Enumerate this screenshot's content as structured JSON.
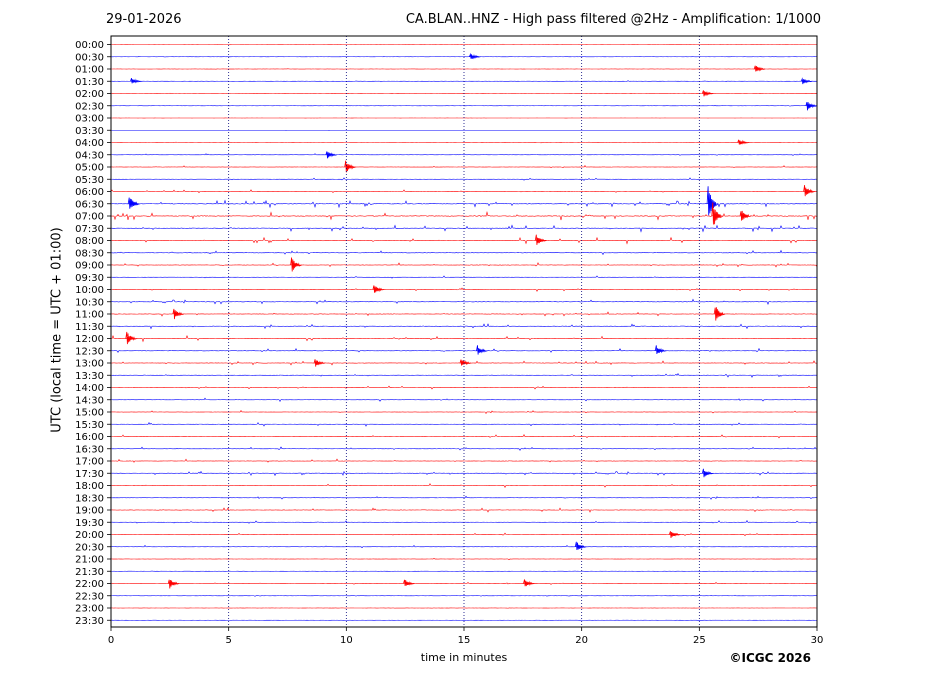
{
  "header": {
    "date": "29-01-2026",
    "title": "CA.BLAN..HNZ - High pass filtered @2Hz - Amplification: 1/1000"
  },
  "footer": {
    "copyright": "©ICGC 2026"
  },
  "colors": {
    "odd_trace": "#ff0000",
    "even_trace": "#0000ff",
    "grid": "#00007a",
    "axis": "#000000"
  },
  "chart_data": {
    "type": "line",
    "title": "CA.BLAN..HNZ - High pass filtered @2Hz - Amplification: 1/1000",
    "xlabel": "time in minutes",
    "ylabel": "UTC (local time = UTC + 01:00)",
    "xlim": [
      0,
      30
    ],
    "x_ticks": [
      "0",
      "5",
      "10",
      "15",
      "20",
      "25",
      "30"
    ],
    "vertical_grid_at": [
      5,
      10,
      15,
      20,
      25
    ],
    "grid": "dotted vertical",
    "trace_color_pattern": [
      "red",
      "blue"
    ],
    "y_ticks": [
      "00:00",
      "00:30",
      "01:00",
      "01:30",
      "02:00",
      "02:30",
      "03:00",
      "03:30",
      "04:00",
      "04:30",
      "05:00",
      "05:30",
      "06:00",
      "06:30",
      "07:00",
      "07:30",
      "08:00",
      "08:30",
      "09:00",
      "09:30",
      "10:00",
      "10:30",
      "11:00",
      "11:30",
      "12:00",
      "12:30",
      "13:00",
      "13:30",
      "14:00",
      "14:30",
      "15:00",
      "15:30",
      "16:00",
      "16:30",
      "17:00",
      "17:30",
      "18:00",
      "18:30",
      "19:00",
      "19:30",
      "20:00",
      "20:30",
      "21:00",
      "21:30",
      "22:00",
      "22:30",
      "23:00",
      "23:30"
    ],
    "activity": [
      0.08,
      0.1,
      0.12,
      0.15,
      0.12,
      0.12,
      0.06,
      0.05,
      0.12,
      0.3,
      0.4,
      0.35,
      0.45,
      0.9,
      1.0,
      0.8,
      0.75,
      0.6,
      0.55,
      0.35,
      0.45,
      0.6,
      0.55,
      0.55,
      0.7,
      0.55,
      0.55,
      0.5,
      0.45,
      0.4,
      0.4,
      0.45,
      0.5,
      0.45,
      0.5,
      0.55,
      0.45,
      0.4,
      0.5,
      0.45,
      0.35,
      0.35,
      0.2,
      0.1,
      0.3,
      0.15,
      0.1,
      0.1
    ],
    "events": [
      {
        "row": "00:30",
        "minute": 15.4,
        "amplitude": 0.3
      },
      {
        "row": "01:00",
        "minute": 27.5,
        "amplitude": 0.35
      },
      {
        "row": "01:30",
        "minute": 1.0,
        "amplitude": 0.3
      },
      {
        "row": "01:30",
        "minute": 29.5,
        "amplitude": 0.3
      },
      {
        "row": "02:00",
        "minute": 25.3,
        "amplitude": 0.3
      },
      {
        "row": "02:30",
        "minute": 29.7,
        "amplitude": 0.45
      },
      {
        "row": "04:00",
        "minute": 26.8,
        "amplitude": 0.3
      },
      {
        "row": "04:30",
        "minute": 9.3,
        "amplitude": 0.4
      },
      {
        "row": "05:00",
        "minute": 10.1,
        "amplitude": 0.55
      },
      {
        "row": "06:00",
        "minute": 29.6,
        "amplitude": 0.6
      },
      {
        "row": "06:30",
        "minute": 0.9,
        "amplitude": 0.8
      },
      {
        "row": "06:30",
        "minute": 25.5,
        "amplitude": 1.6
      },
      {
        "row": "07:00",
        "minute": 25.7,
        "amplitude": 1.2
      },
      {
        "row": "07:00",
        "minute": 26.9,
        "amplitude": 0.6
      },
      {
        "row": "08:00",
        "minute": 18.2,
        "amplitude": 0.5
      },
      {
        "row": "09:00",
        "minute": 7.8,
        "amplitude": 0.7
      },
      {
        "row": "10:00",
        "minute": 11.3,
        "amplitude": 0.5
      },
      {
        "row": "11:00",
        "minute": 2.8,
        "amplitude": 0.5
      },
      {
        "row": "11:00",
        "minute": 25.8,
        "amplitude": 0.8
      },
      {
        "row": "12:00",
        "minute": 0.8,
        "amplitude": 0.6
      },
      {
        "row": "12:30",
        "minute": 15.7,
        "amplitude": 0.45
      },
      {
        "row": "12:30",
        "minute": 23.3,
        "amplitude": 0.45
      },
      {
        "row": "13:00",
        "minute": 8.8,
        "amplitude": 0.4
      },
      {
        "row": "13:00",
        "minute": 15.0,
        "amplitude": 0.4
      },
      {
        "row": "17:30",
        "minute": 25.3,
        "amplitude": 0.4
      },
      {
        "row": "20:00",
        "minute": 23.9,
        "amplitude": 0.4
      },
      {
        "row": "20:30",
        "minute": 19.9,
        "amplitude": 0.5
      },
      {
        "row": "22:00",
        "minute": 2.6,
        "amplitude": 0.5
      },
      {
        "row": "22:00",
        "minute": 12.6,
        "amplitude": 0.4
      },
      {
        "row": "22:00",
        "minute": 17.7,
        "amplitude": 0.4
      }
    ]
  }
}
